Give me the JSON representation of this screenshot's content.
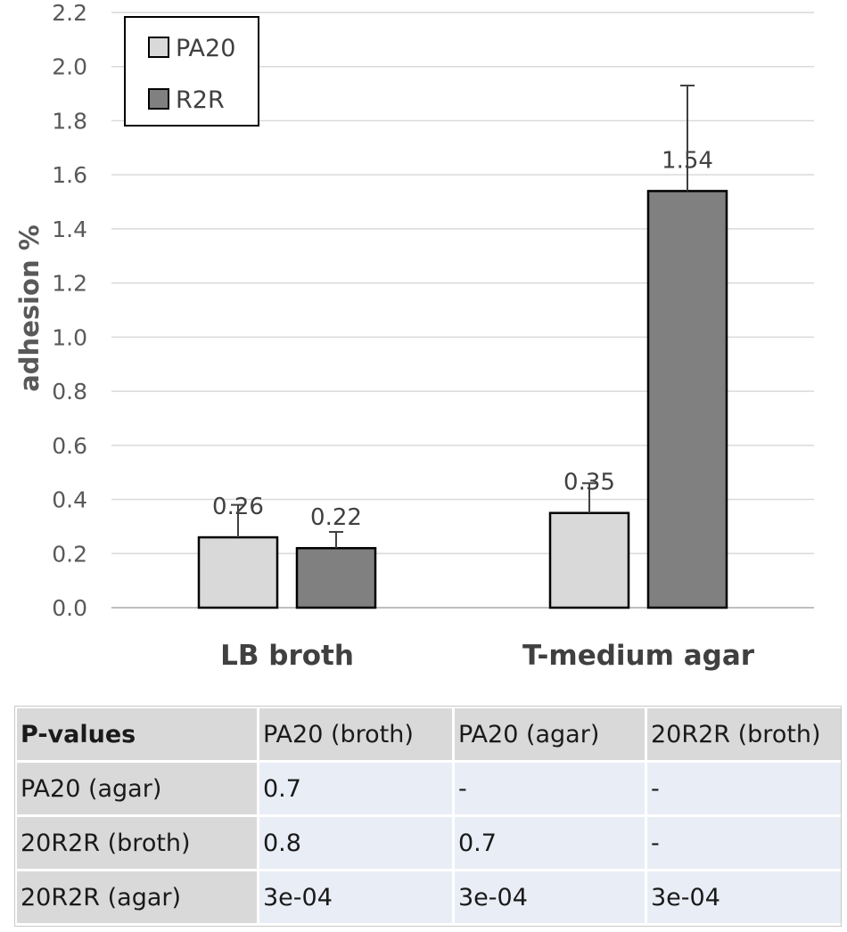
{
  "chart_data": {
    "type": "bar",
    "categories": [
      "LB broth",
      "T-medium agar"
    ],
    "series": [
      {
        "name": "PA20",
        "values": [
          0.26,
          0.35
        ],
        "error": [
          0.12,
          0.11
        ],
        "color": "#d9d9d9"
      },
      {
        "name": "R2R",
        "values": [
          0.22,
          1.54
        ],
        "error": [
          0.06,
          0.39
        ],
        "color": "#808080"
      }
    ],
    "data_labels": [
      [
        "0.26",
        "0.35"
      ],
      [
        "0.22",
        "1.54"
      ]
    ],
    "ylabel": "adhesion %",
    "xlabel": "",
    "title": "",
    "ylim": [
      0,
      2.2
    ],
    "yticks": [
      "0.0",
      "0.2",
      "0.4",
      "0.6",
      "0.8",
      "1.0",
      "1.2",
      "1.4",
      "1.6",
      "1.8",
      "2.0",
      "2.2"
    ],
    "grid": true,
    "legend_position": "top-left"
  },
  "table": {
    "headers": [
      "P-values",
      "PA20 (broth)",
      "PA20 (agar)",
      "20R2R (broth)"
    ],
    "rows": [
      {
        "label": "PA20 (agar)",
        "cells": [
          "0.7",
          "-",
          "-"
        ]
      },
      {
        "label": "20R2R (broth)",
        "cells": [
          "0.8",
          "0.7",
          "-"
        ]
      },
      {
        "label": "20R2R (agar)",
        "cells": [
          "3e-04",
          "3e-04",
          "3e-04"
        ]
      }
    ]
  }
}
